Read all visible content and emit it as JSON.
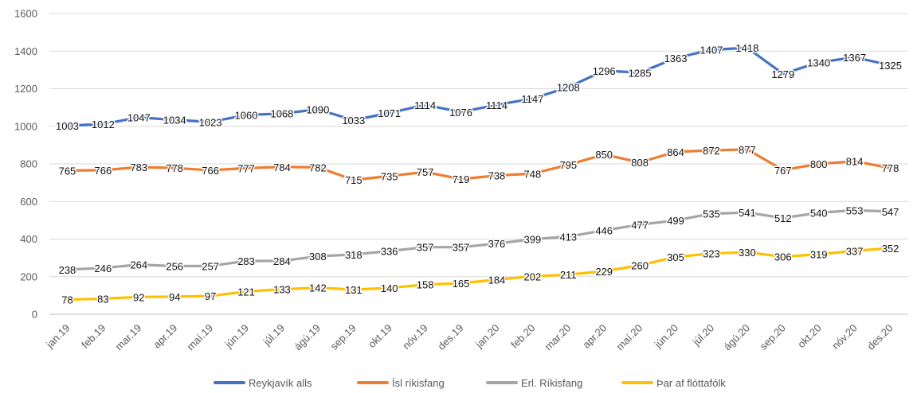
{
  "chart_data": {
    "type": "line",
    "title": "",
    "xlabel": "",
    "ylabel": "",
    "ylim": [
      0,
      1600
    ],
    "yticks": [
      0,
      200,
      400,
      600,
      800,
      1000,
      1200,
      1400,
      1600
    ],
    "grid": "horizontal",
    "legend_position": "bottom",
    "categories": [
      "jan.19",
      "feb.19",
      "mar.19",
      "apr.19",
      "maí.19",
      "jún.19",
      "júl.19",
      "ágú.19",
      "sep.19",
      "okt.19",
      "nóv.19",
      "des.19",
      "jan.20",
      "feb.20",
      "mar.20",
      "apr.20",
      "maí.20",
      "jún.20",
      "júl.20",
      "ágú.20",
      "sep.20",
      "okt.20",
      "nóv.20",
      "des.20"
    ],
    "series": [
      {
        "name": "Reykjavík alls",
        "color": "#4472C4",
        "values": [
          1003,
          1012,
          1047,
          1034,
          1023,
          1060,
          1068,
          1090,
          1033,
          1071,
          1114,
          1076,
          1114,
          1147,
          1208,
          1296,
          1285,
          1363,
          1407,
          1418,
          1279,
          1340,
          1367,
          1325
        ]
      },
      {
        "name": "Ísl ríkisfang",
        "color": "#ED7D31",
        "values": [
          765,
          766,
          783,
          778,
          766,
          777,
          784,
          782,
          715,
          735,
          757,
          719,
          738,
          748,
          795,
          850,
          808,
          864,
          872,
          877,
          767,
          800,
          814,
          778
        ]
      },
      {
        "name": "Erl. Ríkisfang",
        "color": "#A5A5A5",
        "values": [
          238,
          246,
          264,
          256,
          257,
          283,
          284,
          308,
          318,
          336,
          357,
          357,
          376,
          399,
          413,
          446,
          477,
          499,
          535,
          541,
          512,
          540,
          553,
          547
        ]
      },
      {
        "name": "Þar af flóttafólk",
        "color": "#FFC000",
        "values": [
          78,
          83,
          92,
          94,
          97,
          121,
          133,
          142,
          131,
          140,
          158,
          165,
          184,
          202,
          211,
          229,
          260,
          305,
          323,
          330,
          306,
          319,
          337,
          352
        ]
      }
    ]
  }
}
